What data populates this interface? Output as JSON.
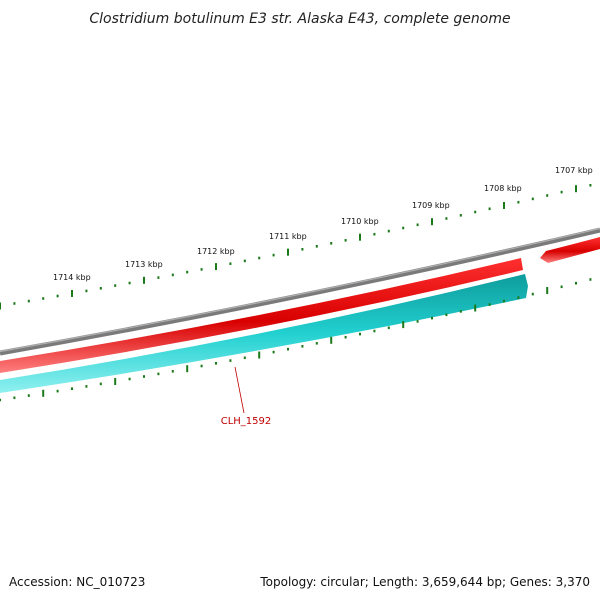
{
  "title": "Clostridium botulinum E3 str. Alaska E43, complete genome",
  "footer": {
    "accession": "Accession: NC_010723",
    "summary": "Topology: circular; Length: 3,659,644 bp; Genes: 3,370"
  },
  "gene_label": "CLH_1592",
  "kbp_labels": [
    "1714 kbp",
    "1713 kbp",
    "1712 kbp",
    "1711 kbp",
    "1710 kbp",
    "1709 kbp",
    "1708 kbp",
    "1707 kbp"
  ],
  "colors": {
    "backbone": "#808080",
    "forward_strand": "#e00000",
    "forward_strand_light": "#ff7070",
    "reverse_strand": "#20c8c8",
    "reverse_strand_dark": "#109090",
    "tick": "#1a7a1a",
    "gene_label": "#c00000"
  }
}
